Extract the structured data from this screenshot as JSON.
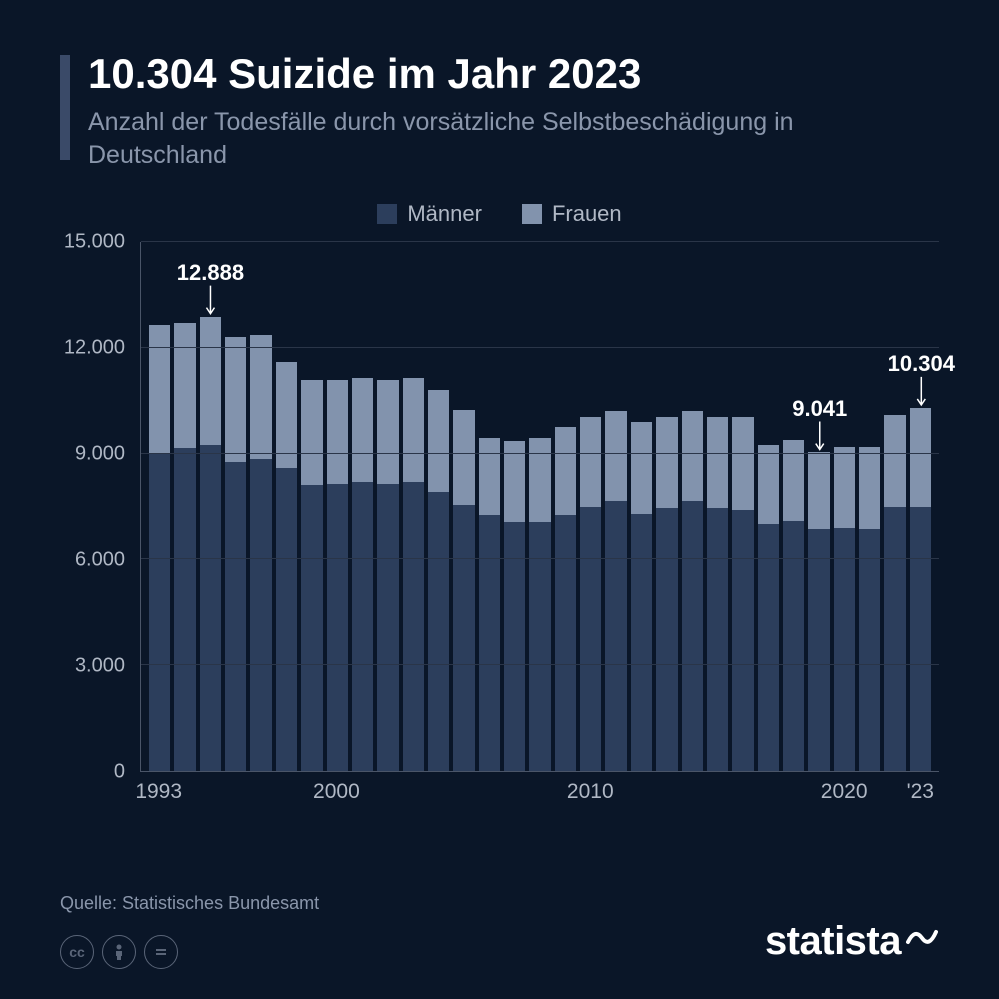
{
  "header": {
    "title": "10.304 Suizide im Jahr 2023",
    "subtitle": "Anzahl der Todesfälle durch vorsätzliche Selbstbeschädigung in Deutschland"
  },
  "legend": {
    "series1": "Männer",
    "series2": "Frauen"
  },
  "colors": {
    "background": "#0a1628",
    "men": "#2c3e5c",
    "women": "#8293ad",
    "accent": "#3a4a68",
    "text_muted": "#8a96ab",
    "grid": "#2a3548"
  },
  "chart": {
    "type": "stacked-bar",
    "ymax": 15000,
    "ymin": 0,
    "ytick_step": 3000,
    "y_ticks": [
      "0",
      "3.000",
      "6.000",
      "9.000",
      "12.000",
      "15.000"
    ],
    "x_ticks": [
      {
        "label": "1993",
        "index": 0
      },
      {
        "label": "2000",
        "index": 7
      },
      {
        "label": "2010",
        "index": 17
      },
      {
        "label": "2020",
        "index": 27
      },
      {
        "label": "'23",
        "index": 30
      }
    ],
    "years": [
      1993,
      1994,
      1995,
      1996,
      1997,
      1998,
      1999,
      2000,
      2001,
      2002,
      2003,
      2004,
      2005,
      2006,
      2007,
      2008,
      2009,
      2010,
      2011,
      2012,
      2013,
      2014,
      2015,
      2016,
      2017,
      2018,
      2019,
      2020,
      2021,
      2022,
      2023
    ],
    "men": [
      9000,
      9150,
      9250,
      8750,
      8850,
      8600,
      8100,
      8150,
      8200,
      8150,
      8200,
      7900,
      7550,
      7250,
      7050,
      7050,
      7250,
      7500,
      7650,
      7300,
      7450,
      7650,
      7450,
      7400,
      7000,
      7100,
      6850,
      6900,
      6850,
      7500,
      7500
    ],
    "women": [
      3650,
      3550,
      3638,
      3550,
      3500,
      3000,
      3000,
      2950,
      2950,
      2950,
      2950,
      2900,
      2700,
      2200,
      2300,
      2400,
      2500,
      2550,
      2550,
      2600,
      2600,
      2550,
      2600,
      2650,
      2250,
      2300,
      2191,
      2300,
      2350,
      2600,
      2804
    ],
    "annotations": [
      {
        "label": "12.888",
        "index": 2,
        "total": 12888
      },
      {
        "label": "9.041",
        "index": 26,
        "total": 9041
      },
      {
        "label": "10.304",
        "index": 30,
        "total": 10304
      }
    ]
  },
  "footer": {
    "source": "Quelle: Statistisches Bundesamt",
    "brand": "statista"
  }
}
